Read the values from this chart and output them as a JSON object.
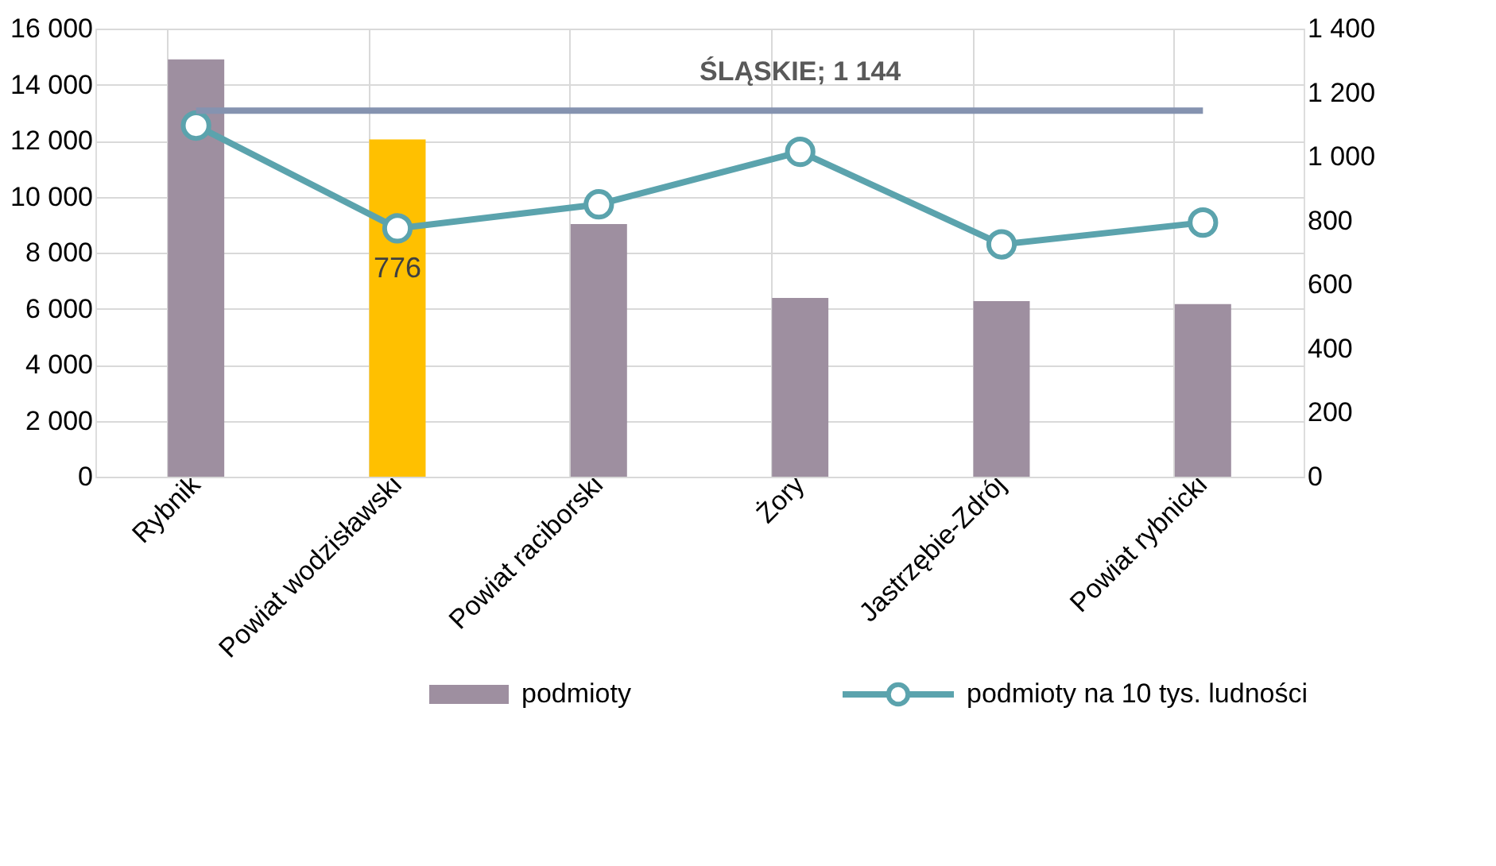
{
  "chart_data": {
    "type": "bar",
    "categories": [
      "Rybnik",
      "Powiat wodzisławski",
      "Powiat raciborski",
      "Żory",
      "Jastrzębie-Zdrój",
      "Powiat rybnicki"
    ],
    "series": [
      {
        "name": "podmioty",
        "color": "#9e8fa0",
        "colors": [
          "#9e8fa0",
          "#ffc000",
          "#9e8fa0",
          "#9e8fa0",
          "#9e8fa0",
          "#9e8fa0"
        ],
        "values": [
          14900,
          12040,
          9020,
          6380,
          6270,
          6160
        ]
      },
      {
        "name": "podmioty na 10 tys. ludności",
        "type": "line",
        "axis": "y2",
        "color": "#5ba3ad",
        "marker": "circle",
        "values": [
          1097,
          776,
          851,
          1015,
          726,
          794
        ],
        "value_labels": [
          null,
          "776",
          null,
          null,
          null,
          null
        ]
      }
    ],
    "ylim": [
      0,
      16000
    ],
    "yticks": [
      0,
      {
        "value": 2000,
        "label": "2 000"
      },
      {
        "value": 4000,
        "label": "4 000"
      },
      {
        "value": 6000,
        "label": "6 000"
      },
      {
        "value": 8000,
        "label": "8 000"
      },
      {
        "value": 10000,
        "label": "10 000"
      },
      {
        "value": 12000,
        "label": "12 000"
      },
      {
        "value": 14000,
        "label": "14 000"
      },
      {
        "value": 16000,
        "label": "16 000"
      }
    ],
    "y2lim": [
      0,
      1400
    ],
    "y2ticks": [
      0,
      200,
      400,
      600,
      800,
      {
        "value": 1000,
        "label": "1 000"
      },
      {
        "value": 1200,
        "label": "1 200"
      },
      {
        "value": 1400,
        "label": "1 400"
      }
    ],
    "ref_lines": [
      {
        "axis": "y2",
        "value": 1144,
        "label": "ŚLĄSKIE; 1 144",
        "color": "#8593b0"
      }
    ],
    "grid": true,
    "legend": "bottom"
  }
}
